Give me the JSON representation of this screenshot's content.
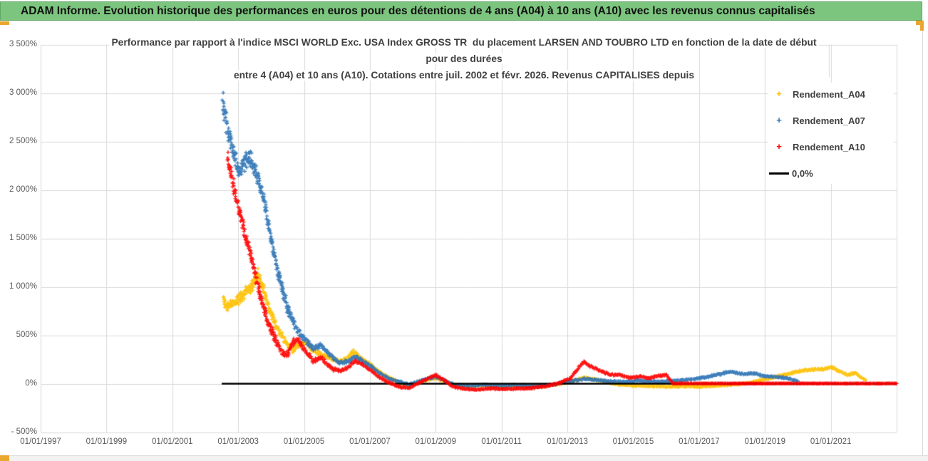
{
  "banner": {
    "text": "ADAM Informe. Evolution historique des performances en euros pour des détentions de 4 ans (A04) à 10 ans (A10) avec les revenus connus capitalisés"
  },
  "chart": {
    "title_line1": "Performance par rapport à l'indice MSCI WORLD Exc. USA Index GROSS TR  du placement LARSEN AND TOUBRO LTD en fonction de la date de début",
    "title_line2": "pour des durées",
    "title_line3": "entre 4 (A04) et 10 ans (A10). Cotations entre juil. 2002 et févr. 2026. Revenus CAPITALISES depuis"
  },
  "colors": {
    "banner_green": "#7cc57e",
    "banner_border": "#61a563",
    "gold_accent": "#eaa72e",
    "gridline": "#d9d9d9",
    "axis_text": "#595959",
    "title_text": "#404040",
    "series_a04": "#FFC000",
    "series_a07": "#2E74B5",
    "series_a10": "#FF0000",
    "zero_line": "#000000"
  },
  "chart_data": {
    "type": "scatter",
    "title": "Performance par rapport à l'indice MSCI WORLD Exc. USA Index GROSS TR du placement LARSEN AND TOUBRO LTD en fonction de la date de début pour des durées entre 4 (A04) et 10 ans (A10). Cotations entre juil. 2002 et févr. 2026. Revenus CAPITALISES depuis",
    "x_axis": {
      "start_year": 1997,
      "end_year": 2023,
      "tick_step_years": 2,
      "tick_labels": [
        "01/01/1997",
        "01/01/1999",
        "01/01/2001",
        "01/01/2003",
        "01/01/2005",
        "01/01/2007",
        "01/01/2009",
        "01/01/2011",
        "01/01/2013",
        "01/01/2015",
        "01/01/2017",
        "01/01/2019",
        "01/01/2021"
      ]
    },
    "y_axis": {
      "min": -500,
      "max": 3500,
      "step": 500,
      "unit": "%",
      "tick_labels": [
        "3 500%",
        "3 000%",
        "2 500%",
        "2 000%",
        "1 500%",
        "1 000%",
        "500%",
        "0%",
        "- 500%"
      ]
    },
    "grid": true,
    "legend_position": "right-inside",
    "legend": [
      {
        "label": "Rendement_A04",
        "color": "#FFC000",
        "marker": "+"
      },
      {
        "label": "Rendement_A07",
        "color": "#2E74B5",
        "marker": "+"
      },
      {
        "label": "Rendement_A10",
        "color": "#FF0000",
        "marker": "+"
      },
      {
        "label": "0,0%",
        "color": "#000000",
        "marker": "line"
      }
    ],
    "zero_line": {
      "value": 0,
      "start_year": 2002.5,
      "end_year": 2023.0
    },
    "series": [
      {
        "name": "Rendement_A04",
        "color": "#FFC000",
        "points_format": [
          "decimal_year",
          "value_percent",
          "scatter_halfwidth_percent"
        ],
        "points": [
          [
            2002.55,
            870,
            65
          ],
          [
            2002.7,
            790,
            55
          ],
          [
            2002.85,
            830,
            50
          ],
          [
            2003.0,
            870,
            55
          ],
          [
            2003.2,
            930,
            60
          ],
          [
            2003.4,
            1000,
            65
          ],
          [
            2003.62,
            1130,
            70
          ],
          [
            2003.8,
            920,
            60
          ],
          [
            2004.0,
            720,
            50
          ],
          [
            2004.2,
            560,
            45
          ],
          [
            2004.45,
            430,
            38
          ],
          [
            2004.65,
            340,
            32
          ],
          [
            2004.85,
            400,
            30
          ],
          [
            2005.05,
            430,
            28
          ],
          [
            2005.3,
            330,
            25
          ],
          [
            2005.55,
            300,
            22
          ],
          [
            2005.8,
            260,
            20
          ],
          [
            2006.1,
            230,
            18
          ],
          [
            2006.3,
            260,
            18
          ],
          [
            2006.5,
            330,
            20
          ],
          [
            2006.75,
            260,
            18
          ],
          [
            2007.0,
            200,
            16
          ],
          [
            2007.3,
            120,
            13
          ],
          [
            2007.6,
            60,
            11
          ],
          [
            2007.9,
            10,
            9
          ],
          [
            2008.2,
            -20,
            8
          ],
          [
            2008.6,
            30,
            9
          ],
          [
            2009.0,
            60,
            10
          ],
          [
            2009.3,
            20,
            9
          ],
          [
            2009.6,
            -20,
            8
          ],
          [
            2010.0,
            -25,
            8
          ],
          [
            2010.5,
            -15,
            8
          ],
          [
            2011.0,
            -25,
            8
          ],
          [
            2011.5,
            -20,
            8
          ],
          [
            2012.0,
            -30,
            8
          ],
          [
            2012.4,
            -20,
            8
          ],
          [
            2012.8,
            0,
            8
          ],
          [
            2013.2,
            30,
            9
          ],
          [
            2013.5,
            65,
            10
          ],
          [
            2013.8,
            45,
            9
          ],
          [
            2014.2,
            15,
            8
          ],
          [
            2014.6,
            -10,
            8
          ],
          [
            2015.0,
            -20,
            8
          ],
          [
            2015.5,
            -25,
            8
          ],
          [
            2016.0,
            -30,
            8
          ],
          [
            2016.5,
            -25,
            8
          ],
          [
            2017.0,
            -30,
            8
          ],
          [
            2017.5,
            -20,
            8
          ],
          [
            2018.0,
            -10,
            7
          ],
          [
            2018.5,
            5,
            7
          ],
          [
            2018.8,
            30,
            8
          ],
          [
            2019.2,
            60,
            9
          ],
          [
            2019.7,
            100,
            11
          ],
          [
            2020.2,
            140,
            12
          ],
          [
            2020.5,
            150,
            12
          ],
          [
            2020.8,
            150,
            12
          ],
          [
            2021.05,
            170,
            12
          ],
          [
            2021.3,
            120,
            11
          ],
          [
            2021.5,
            90,
            10
          ],
          [
            2021.75,
            110,
            10
          ],
          [
            2021.9,
            70,
            9
          ],
          [
            2022.06,
            40,
            7
          ]
        ]
      },
      {
        "name": "Rendement_A07",
        "color": "#2E74B5",
        "points_format": [
          "decimal_year",
          "value_percent",
          "scatter_halfwidth_percent"
        ],
        "points": [
          [
            2002.52,
            2880,
            150
          ],
          [
            2002.62,
            2740,
            130
          ],
          [
            2002.72,
            2560,
            120
          ],
          [
            2002.82,
            2440,
            100
          ],
          [
            2002.92,
            2300,
            95
          ],
          [
            2003.02,
            2170,
            90
          ],
          [
            2003.17,
            2280,
            100
          ],
          [
            2003.32,
            2340,
            90
          ],
          [
            2003.47,
            2250,
            85
          ],
          [
            2003.62,
            2090,
            90
          ],
          [
            2003.77,
            1940,
            85
          ],
          [
            2003.9,
            1680,
            75
          ],
          [
            2004.05,
            1400,
            80
          ],
          [
            2004.2,
            1150,
            70
          ],
          [
            2004.35,
            950,
            65
          ],
          [
            2004.5,
            780,
            60
          ],
          [
            2004.7,
            620,
            50
          ],
          [
            2004.9,
            500,
            40
          ],
          [
            2005.1,
            420,
            35
          ],
          [
            2005.3,
            360,
            30
          ],
          [
            2005.5,
            400,
            28
          ],
          [
            2005.7,
            330,
            26
          ],
          [
            2005.9,
            260,
            22
          ],
          [
            2006.1,
            220,
            20
          ],
          [
            2006.35,
            230,
            18
          ],
          [
            2006.55,
            280,
            18
          ],
          [
            2006.8,
            230,
            16
          ],
          [
            2007.05,
            180,
            15
          ],
          [
            2007.3,
            110,
            12
          ],
          [
            2007.6,
            50,
            10
          ],
          [
            2007.9,
            20,
            9
          ],
          [
            2008.2,
            -10,
            8
          ],
          [
            2008.6,
            40,
            9
          ],
          [
            2009.0,
            70,
            10
          ],
          [
            2009.3,
            30,
            9
          ],
          [
            2009.6,
            -15,
            8
          ],
          [
            2010.0,
            -20,
            8
          ],
          [
            2010.5,
            -10,
            8
          ],
          [
            2011.0,
            -20,
            8
          ],
          [
            2011.5,
            -15,
            8
          ],
          [
            2012.0,
            -25,
            8
          ],
          [
            2012.5,
            -10,
            8
          ],
          [
            2013.0,
            20,
            8
          ],
          [
            2013.5,
            50,
            9
          ],
          [
            2013.9,
            40,
            8
          ],
          [
            2014.3,
            25,
            8
          ],
          [
            2014.7,
            20,
            8
          ],
          [
            2015.1,
            30,
            8
          ],
          [
            2015.5,
            25,
            8
          ],
          [
            2015.9,
            20,
            8
          ],
          [
            2016.4,
            35,
            8
          ],
          [
            2016.9,
            50,
            8
          ],
          [
            2017.3,
            75,
            9
          ],
          [
            2017.7,
            105,
            10
          ],
          [
            2018.0,
            125,
            10
          ],
          [
            2018.3,
            100,
            9
          ],
          [
            2018.7,
            105,
            9
          ],
          [
            2019.0,
            75,
            9
          ],
          [
            2019.4,
            70,
            8
          ],
          [
            2019.7,
            55,
            8
          ],
          [
            2019.9,
            35,
            7
          ],
          [
            2020.0,
            25,
            6
          ]
        ]
      },
      {
        "name": "Rendement_A10",
        "color": "#FF0000",
        "points_format": [
          "decimal_year",
          "value_percent",
          "scatter_halfwidth_percent"
        ],
        "points": [
          [
            2002.68,
            2330,
            100
          ],
          [
            2002.78,
            2160,
            95
          ],
          [
            2002.88,
            1990,
            85
          ],
          [
            2002.98,
            1830,
            80
          ],
          [
            2003.1,
            1700,
            80
          ],
          [
            2003.22,
            1540,
            75
          ],
          [
            2003.34,
            1400,
            75
          ],
          [
            2003.47,
            1200,
            80
          ],
          [
            2003.6,
            1000,
            70
          ],
          [
            2003.72,
            860,
            60
          ],
          [
            2003.85,
            700,
            55
          ],
          [
            2004.0,
            560,
            50
          ],
          [
            2004.15,
            440,
            45
          ],
          [
            2004.3,
            340,
            40
          ],
          [
            2004.5,
            300,
            38
          ],
          [
            2004.65,
            420,
            38
          ],
          [
            2004.8,
            470,
            34
          ],
          [
            2004.95,
            380,
            30
          ],
          [
            2005.1,
            310,
            28
          ],
          [
            2005.3,
            230,
            24
          ],
          [
            2005.5,
            270,
            22
          ],
          [
            2005.7,
            200,
            20
          ],
          [
            2005.9,
            150,
            17
          ],
          [
            2006.1,
            130,
            15
          ],
          [
            2006.35,
            170,
            15
          ],
          [
            2006.55,
            240,
            15
          ],
          [
            2006.8,
            190,
            14
          ],
          [
            2007.05,
            130,
            13
          ],
          [
            2007.3,
            60,
            11
          ],
          [
            2007.6,
            10,
            9
          ],
          [
            2007.9,
            -35,
            8
          ],
          [
            2008.2,
            -45,
            8
          ],
          [
            2008.5,
            10,
            9
          ],
          [
            2008.8,
            60,
            10
          ],
          [
            2009.0,
            90,
            10
          ],
          [
            2009.25,
            40,
            9
          ],
          [
            2009.5,
            -30,
            8
          ],
          [
            2009.9,
            -55,
            8
          ],
          [
            2010.3,
            -60,
            8
          ],
          [
            2010.7,
            -50,
            8
          ],
          [
            2011.1,
            -55,
            8
          ],
          [
            2011.5,
            -50,
            8
          ],
          [
            2011.9,
            -45,
            8
          ],
          [
            2012.3,
            -30,
            8
          ],
          [
            2012.7,
            0,
            8
          ],
          [
            2013.1,
            60,
            10
          ],
          [
            2013.5,
            230,
            14
          ],
          [
            2013.7,
            180,
            12
          ],
          [
            2013.95,
            140,
            11
          ],
          [
            2014.3,
            95,
            10
          ],
          [
            2014.6,
            90,
            9
          ],
          [
            2014.9,
            60,
            9
          ],
          [
            2015.2,
            75,
            9
          ],
          [
            2015.5,
            55,
            8
          ],
          [
            2015.75,
            80,
            8
          ],
          [
            2016.0,
            90,
            8
          ],
          [
            2016.1,
            45,
            6
          ],
          [
            2016.2,
            2,
            1.5
          ],
          [
            2023.0,
            2,
            1.5
          ]
        ]
      }
    ]
  }
}
